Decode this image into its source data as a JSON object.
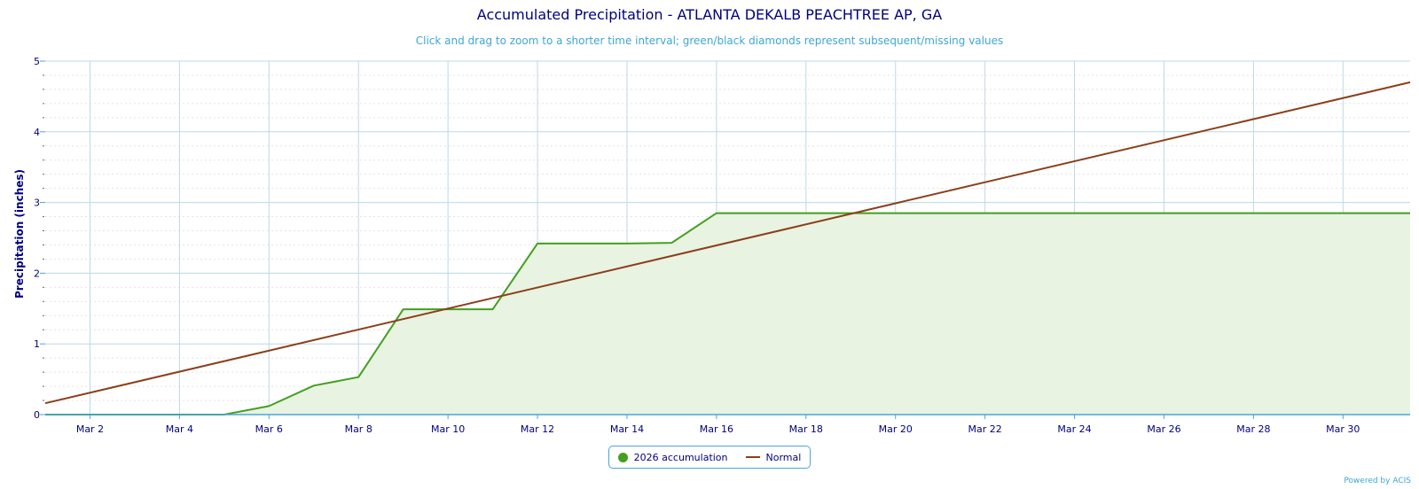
{
  "chart_data": {
    "type": "area",
    "title": "Accumulated Precipitation - ATLANTA DEKALB PEACHTREE AP, GA",
    "subtitle": "Click and drag to zoom to a shorter time interval; green/black diamonds represent subsequent/missing values",
    "ylabel": "Precipitation (inches)",
    "xlabel": "",
    "xlim": [
      1,
      31.5
    ],
    "ylim": [
      0,
      5
    ],
    "yticks": [
      0,
      1,
      2,
      3,
      4,
      5
    ],
    "xticks": [
      {
        "day": 2,
        "label": "Mar 2"
      },
      {
        "day": 4,
        "label": "Mar 4"
      },
      {
        "day": 6,
        "label": "Mar 6"
      },
      {
        "day": 8,
        "label": "Mar 8"
      },
      {
        "day": 10,
        "label": "Mar 10"
      },
      {
        "day": 12,
        "label": "Mar 12"
      },
      {
        "day": 14,
        "label": "Mar 14"
      },
      {
        "day": 16,
        "label": "Mar 16"
      },
      {
        "day": 18,
        "label": "Mar 18"
      },
      {
        "day": 20,
        "label": "Mar 20"
      },
      {
        "day": 22,
        "label": "Mar 22"
      },
      {
        "day": 24,
        "label": "Mar 24"
      },
      {
        "day": 26,
        "label": "Mar 26"
      },
      {
        "day": 28,
        "label": "Mar 28"
      },
      {
        "day": 30,
        "label": "Mar 30"
      }
    ],
    "grid": true,
    "legend_position": "bottom-center",
    "series": [
      {
        "name": "2026 accumulation",
        "kind": "area",
        "color": "#43a01e",
        "fill": "#e8f3e2",
        "x": [
          1,
          2,
          3,
          4,
          5,
          6,
          7,
          8,
          9,
          10,
          11,
          12,
          13,
          14,
          15,
          16,
          17,
          18,
          19,
          20,
          21,
          22,
          23,
          24,
          25,
          26,
          27,
          28,
          29,
          30,
          31,
          31.5
        ],
        "values": [
          0,
          0,
          0,
          0,
          0,
          0.12,
          0.41,
          0.53,
          1.49,
          1.49,
          1.49,
          2.42,
          2.42,
          2.42,
          2.43,
          2.85,
          2.85,
          2.85,
          2.85,
          2.85,
          2.85,
          2.85,
          2.85,
          2.85,
          2.85,
          2.85,
          2.85,
          2.85,
          2.85,
          2.85,
          2.85,
          2.85
        ]
      },
      {
        "name": "Normal",
        "kind": "line",
        "color": "#8b3f1a",
        "x": [
          1,
          31.5
        ],
        "values": [
          0.16,
          4.7
        ]
      }
    ]
  },
  "legend": {
    "items": [
      {
        "label": "2026 accumulation",
        "color": "#43a01e"
      },
      {
        "label": "Normal",
        "color": "#8b3f1a"
      }
    ]
  },
  "credit": "Powered by ACIS"
}
